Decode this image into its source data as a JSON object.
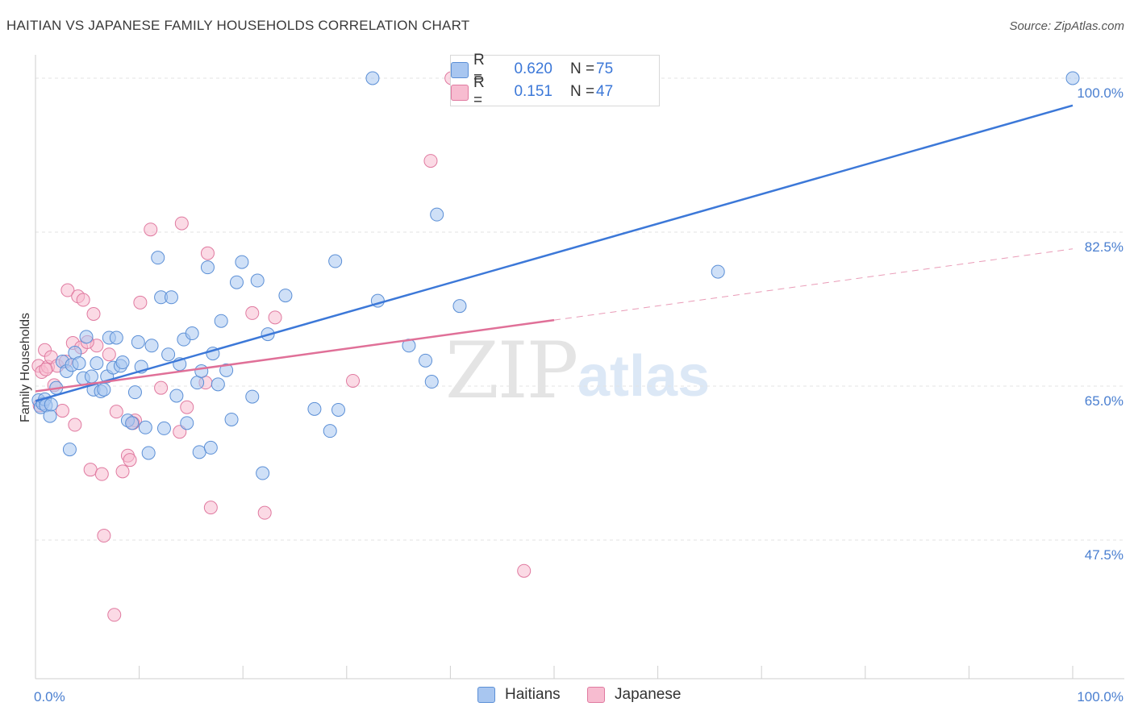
{
  "header": {
    "title": "HAITIAN VS JAPANESE FAMILY HOUSEHOLDS CORRELATION CHART",
    "source": "Source: ZipAtlas.com"
  },
  "watermark": {
    "zip": "ZIP",
    "atlas": "atlas"
  },
  "legend": {
    "rows": [
      {
        "r_label": "R =",
        "r_value": "0.620",
        "n_label": "N =",
        "n_value": "75",
        "color": "#a8c6f0",
        "edge": "#5b8fd6"
      },
      {
        "r_label": "R =",
        "r_value": "0.151",
        "n_label": "N =",
        "n_value": "47",
        "color": "#f7bcd0",
        "edge": "#e07aa0"
      }
    ]
  },
  "bottom_legend": {
    "haitians": "Haitians",
    "japanese": "Japanese"
  },
  "colors": {
    "haitian_fill": "#a8c6f0",
    "haitian_edge": "#5b8fd6",
    "haitian_line": "#3c78d8",
    "japanese_fill": "#f7bcd0",
    "japanese_edge": "#e07aa0",
    "japanese_line": "#e07098"
  },
  "chart_data": {
    "type": "scatter",
    "title": "HAITIAN VS JAPANESE FAMILY HOUSEHOLDS CORRELATION CHART",
    "xlabel": "",
    "ylabel": "Family Households",
    "xlim": [
      0,
      100
    ],
    "ylim": [
      30,
      101
    ],
    "x_tick_labels": [
      "0.0%",
      "100.0%"
    ],
    "y_ticks": [
      47.5,
      65.0,
      82.5,
      100.0
    ],
    "y_tick_labels": [
      "47.5%",
      "65.0%",
      "82.5%",
      "100.0%"
    ],
    "grid": true,
    "legend_placement": "top-center",
    "series": [
      {
        "name": "Haitians",
        "trend": {
          "x": [
            0,
            100
          ],
          "y": [
            63.3,
            96.9
          ]
        },
        "points": [
          [
            0.3,
            63.4
          ],
          [
            0.5,
            62.6
          ],
          [
            0.7,
            63.0
          ],
          [
            0.9,
            63.5
          ],
          [
            1.0,
            62.8
          ],
          [
            1.4,
            61.6
          ],
          [
            1.5,
            62.9
          ],
          [
            2.0,
            64.8
          ],
          [
            2.6,
            67.8
          ],
          [
            3.0,
            66.7
          ],
          [
            3.3,
            57.8
          ],
          [
            3.5,
            67.4
          ],
          [
            3.8,
            68.8
          ],
          [
            4.2,
            67.6
          ],
          [
            4.6,
            65.9
          ],
          [
            4.9,
            70.6
          ],
          [
            5.4,
            66.1
          ],
          [
            5.6,
            64.6
          ],
          [
            5.9,
            67.6
          ],
          [
            6.3,
            64.4
          ],
          [
            6.6,
            64.6
          ],
          [
            6.9,
            66.1
          ],
          [
            7.1,
            70.5
          ],
          [
            7.5,
            67.1
          ],
          [
            7.8,
            70.5
          ],
          [
            8.2,
            67.3
          ],
          [
            8.4,
            67.7
          ],
          [
            8.9,
            61.1
          ],
          [
            9.3,
            60.8
          ],
          [
            9.6,
            64.3
          ],
          [
            9.9,
            70.0
          ],
          [
            10.2,
            67.2
          ],
          [
            10.6,
            60.3
          ],
          [
            10.9,
            57.4
          ],
          [
            11.2,
            69.6
          ],
          [
            11.8,
            79.6
          ],
          [
            12.1,
            75.1
          ],
          [
            12.4,
            60.2
          ],
          [
            12.8,
            68.6
          ],
          [
            13.1,
            75.1
          ],
          [
            13.6,
            63.9
          ],
          [
            13.9,
            67.5
          ],
          [
            14.3,
            70.3
          ],
          [
            14.6,
            60.8
          ],
          [
            15.1,
            71.0
          ],
          [
            15.6,
            65.4
          ],
          [
            15.8,
            57.5
          ],
          [
            16.0,
            66.7
          ],
          [
            16.6,
            78.5
          ],
          [
            16.9,
            58.0
          ],
          [
            17.1,
            68.7
          ],
          [
            17.6,
            65.2
          ],
          [
            17.9,
            72.4
          ],
          [
            18.4,
            66.8
          ],
          [
            18.9,
            61.2
          ],
          [
            19.4,
            76.8
          ],
          [
            19.9,
            79.1
          ],
          [
            20.9,
            63.8
          ],
          [
            21.4,
            77.0
          ],
          [
            21.9,
            55.1
          ],
          [
            22.4,
            70.9
          ],
          [
            24.1,
            75.3
          ],
          [
            26.9,
            62.4
          ],
          [
            28.4,
            59.9
          ],
          [
            28.9,
            79.2
          ],
          [
            29.2,
            62.3
          ],
          [
            32.5,
            100.0
          ],
          [
            33.0,
            74.7
          ],
          [
            36.0,
            69.6
          ],
          [
            37.6,
            67.9
          ],
          [
            38.2,
            65.5
          ],
          [
            38.7,
            84.5
          ],
          [
            40.9,
            74.1
          ],
          [
            65.8,
            78.0
          ],
          [
            100.0,
            100.0
          ]
        ]
      },
      {
        "name": "Japanese",
        "trend": {
          "x": [
            0,
            50
          ],
          "y": [
            64.4,
            72.5
          ]
        },
        "trend_dashed": {
          "x": [
            50,
            100
          ],
          "y": [
            72.5,
            80.6
          ]
        },
        "points": [
          [
            0.3,
            67.3
          ],
          [
            0.6,
            66.6
          ],
          [
            0.9,
            69.1
          ],
          [
            1.2,
            67.2
          ],
          [
            1.5,
            68.3
          ],
          [
            1.8,
            65.1
          ],
          [
            2.1,
            67.3
          ],
          [
            2.6,
            62.2
          ],
          [
            3.1,
            75.9
          ],
          [
            3.6,
            69.9
          ],
          [
            3.8,
            60.6
          ],
          [
            4.1,
            75.2
          ],
          [
            4.4,
            69.4
          ],
          [
            4.6,
            74.8
          ],
          [
            5.3,
            55.5
          ],
          [
            5.6,
            73.2
          ],
          [
            5.9,
            69.6
          ],
          [
            6.4,
            55.0
          ],
          [
            6.6,
            48.0
          ],
          [
            7.1,
            68.6
          ],
          [
            7.6,
            39.0
          ],
          [
            7.8,
            62.1
          ],
          [
            8.4,
            55.3
          ],
          [
            8.9,
            57.1
          ],
          [
            9.1,
            56.6
          ],
          [
            9.6,
            61.1
          ],
          [
            10.1,
            74.5
          ],
          [
            11.1,
            82.8
          ],
          [
            12.1,
            64.8
          ],
          [
            13.9,
            59.8
          ],
          [
            14.1,
            83.5
          ],
          [
            14.6,
            62.6
          ],
          [
            16.4,
            65.4
          ],
          [
            16.6,
            80.1
          ],
          [
            16.9,
            51.2
          ],
          [
            20.9,
            73.3
          ],
          [
            22.1,
            50.6
          ],
          [
            23.1,
            72.8
          ],
          [
            30.6,
            65.6
          ],
          [
            38.1,
            90.6
          ],
          [
            40.1,
            100.0
          ],
          [
            47.1,
            44.0
          ],
          [
            5.0,
            70.0
          ],
          [
            1.0,
            66.9
          ],
          [
            2.9,
            67.8
          ],
          [
            0.4,
            62.8
          ],
          [
            9.4,
            60.8
          ]
        ]
      }
    ]
  }
}
